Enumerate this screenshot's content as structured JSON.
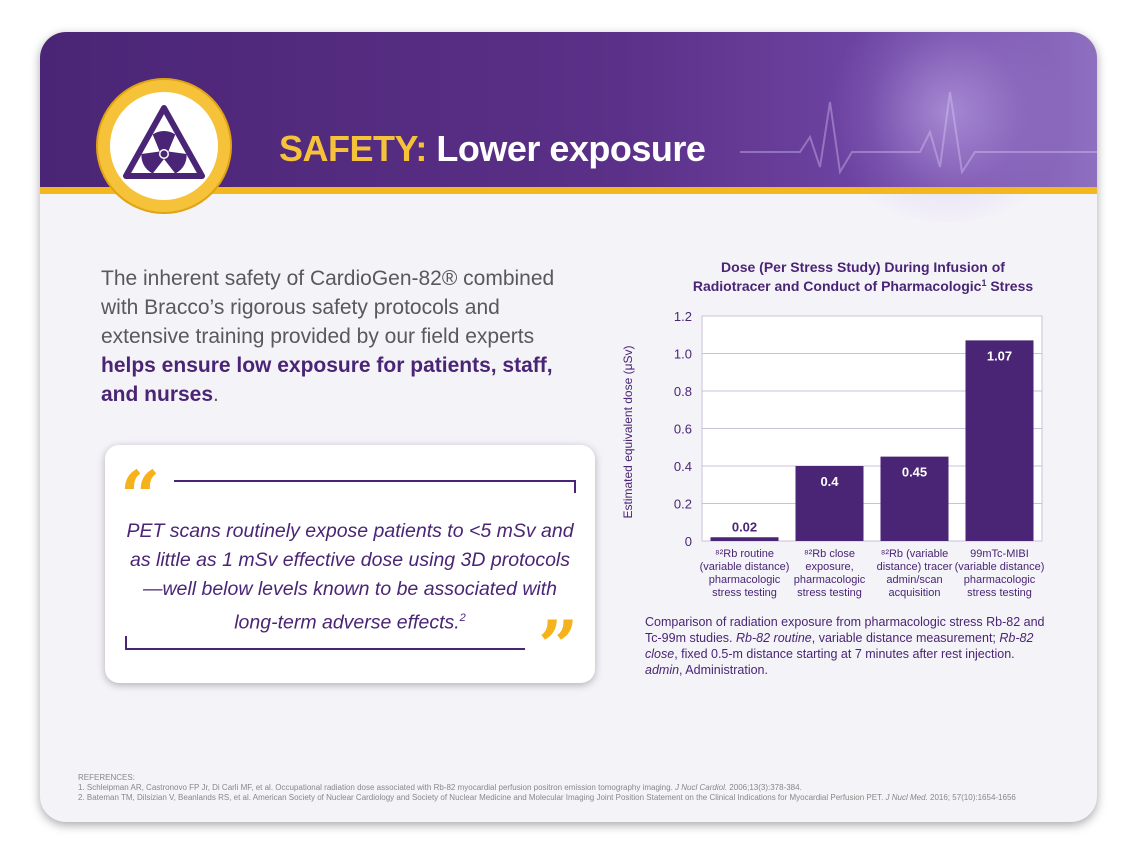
{
  "header": {
    "title_accent": "SAFETY:",
    "title_rest": "Lower exposure",
    "icon": "radiation-warning-icon",
    "colors": {
      "purple": "#4a2575",
      "gold": "#f6c23a"
    }
  },
  "intro": {
    "text_plain": "The inherent safety of CardioGen-82® combined with Bracco’s rigorous safety protocols and extensive training provided by our field experts",
    "text_bold": "helps ensure low exposure for patients, staff, and nurses",
    "text_end": "."
  },
  "quote": {
    "text": "PET scans routinely expose patients to <5 mSv and as little as 1 mSv effective dose using 3D protocols—well below levels known to be associated with long-term adverse effects.",
    "ref": "2"
  },
  "chart_data": {
    "type": "bar",
    "title_line1": "Dose (Per Stress Study) During Infusion of",
    "title_line2": "Radiotracer and Conduct of Pharmacologic",
    "title_sup": "1",
    "title_line2_end": " Stress",
    "ylabel": "Estimated equivalent dose (μSv)",
    "ylim": [
      0,
      1.2
    ],
    "yticks": [
      "0",
      "0.2",
      "0.4",
      "0.6",
      "0.8",
      "1.0",
      "1.2"
    ],
    "categories": [
      [
        "⁸²Rb routine",
        "(variable distance)",
        "pharmacologic",
        "stress testing"
      ],
      [
        "⁸²Rb close",
        "exposure,",
        "pharmacologic",
        "stress testing"
      ],
      [
        "⁸²Rb (variable",
        "distance) tracer",
        "admin/scan",
        "acquisition"
      ],
      [
        "99mTc-MIBI",
        "(variable distance)",
        "pharmacologic",
        "stress testing"
      ]
    ],
    "values": [
      0.02,
      0.4,
      0.45,
      1.07
    ],
    "data_labels": [
      "0.02",
      "0.4",
      "0.45",
      "1.07"
    ],
    "bar_color": "#4a2575",
    "grid": true
  },
  "caption": {
    "p1": "Comparison of radiation exposure from pharmacologic stress Rb-82 and Tc-99m studies.",
    "i1": "Rb-82 routine",
    "p2": ", variable distance measurement;",
    "i2": "Rb-82 close",
    "p3": ", fixed 0.5-m distance starting at 7 minutes after rest injection.",
    "i3": "admin",
    "p4": ", Administration."
  },
  "references": {
    "heading": "REFERENCES:",
    "r1_text": "1. Schleipman AR, Castronovo FP Jr, Di Carli MF, et al. Occupational radiation dose associated with Rb-82 myocardial perfusion positron emission tomography imaging.",
    "r1_journal": "J Nucl Cardiol.",
    "r1_end": "2006;13(3):378-384.",
    "r2_text": "2. Bateman TM, Dilsizian V, Beanlands RS, et al. American Society of Nuclear Cardiology and Society of Nuclear Medicine and Molecular Imaging Joint Position Statement on the Clinical Indications for Myocardial Perfusion PET.",
    "r2_journal": "J Nucl Med.",
    "r2_end": "2016; 57(10):1654-1656"
  }
}
